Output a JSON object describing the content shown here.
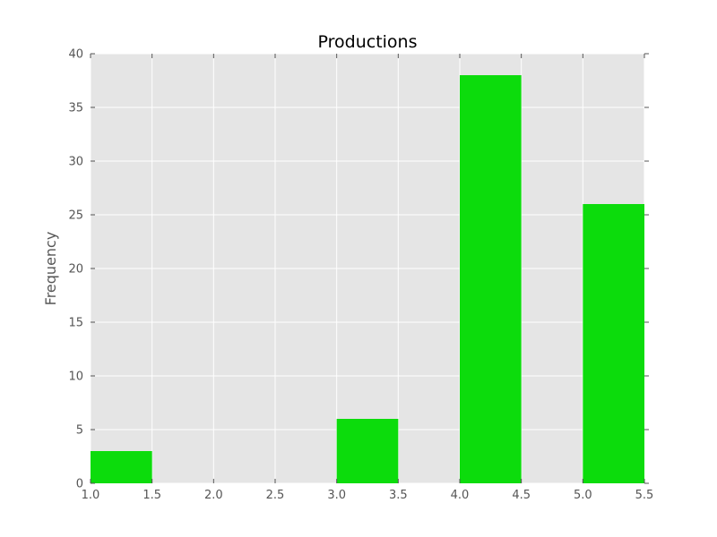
{
  "chart_data": {
    "type": "bar",
    "title": "Productions",
    "xlabel": "",
    "ylabel": "Frequency",
    "bins": [
      {
        "x0": 1.0,
        "x1": 1.5,
        "value": 3
      },
      {
        "x0": 1.5,
        "x1": 2.0,
        "value": 0
      },
      {
        "x0": 2.0,
        "x1": 2.5,
        "value": 0
      },
      {
        "x0": 2.5,
        "x1": 3.0,
        "value": 0
      },
      {
        "x0": 3.0,
        "x1": 3.5,
        "value": 6
      },
      {
        "x0": 3.5,
        "x1": 4.0,
        "value": 0
      },
      {
        "x0": 4.0,
        "x1": 4.5,
        "value": 38
      },
      {
        "x0": 4.5,
        "x1": 5.0,
        "value": 0
      },
      {
        "x0": 5.0,
        "x1": 5.5,
        "value": 26
      }
    ],
    "xlim": [
      1.0,
      5.5
    ],
    "ylim": [
      0,
      40
    ],
    "xticks": [
      "1.0",
      "1.5",
      "2.0",
      "2.5",
      "3.0",
      "3.5",
      "4.0",
      "4.5",
      "5.0",
      "5.5"
    ],
    "yticks": [
      "0",
      "5",
      "10",
      "15",
      "20",
      "25",
      "30",
      "35",
      "40"
    ],
    "grid": true,
    "colors": {
      "bar": "#0cdc0c",
      "plot_background": "#e5e5e5",
      "grid": "#ffffff"
    }
  }
}
